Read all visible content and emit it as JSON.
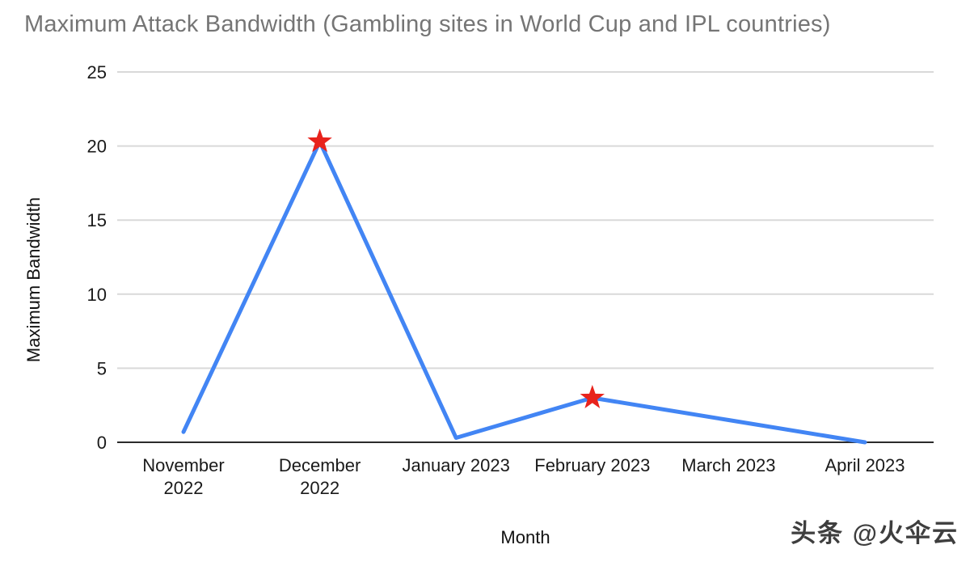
{
  "page": {
    "background_color": "#ffffff",
    "watermark": "头条 @火伞云"
  },
  "chart_data": {
    "type": "line",
    "title": "Maximum Attack Bandwidth (Gambling sites in World Cup and IPL countries)",
    "xlabel": "Month",
    "ylabel": "Maximum Bandwidth",
    "categories": [
      "November 2022",
      "December 2022",
      "January 2023",
      "February 2023",
      "March 2023",
      "April 2023"
    ],
    "category_display_lines": [
      [
        "November",
        "2022"
      ],
      [
        "December",
        "2022"
      ],
      [
        "January 2023"
      ],
      [
        "February 2023"
      ],
      [
        "March 2023"
      ],
      [
        "April 2023"
      ]
    ],
    "series": [
      {
        "name": "Maximum Bandwidth",
        "values": [
          0.7,
          20.3,
          0.3,
          3,
          1.5,
          0
        ]
      }
    ],
    "starred_point_indices": [
      1,
      3
    ],
    "ylim": [
      0,
      25
    ],
    "yticks": [
      0,
      5,
      10,
      15,
      20,
      25
    ],
    "grid": true,
    "legend": "none",
    "colors": {
      "title": "#757575",
      "line": "#4285f4",
      "star": "#e8231c",
      "grid": "#d9d9d9",
      "axis": "#2b2b2b",
      "tick_label": "#1a1a1a"
    }
  }
}
